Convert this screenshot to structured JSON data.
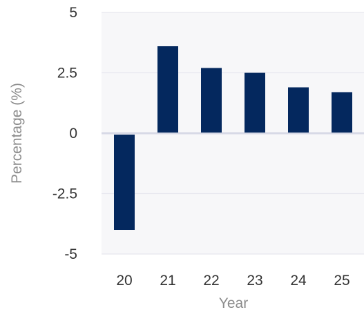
{
  "chart_data": {
    "type": "bar",
    "categories": [
      "20",
      "21",
      "22",
      "23",
      "24",
      "25"
    ],
    "values": [
      -4.0,
      3.6,
      2.7,
      2.5,
      1.9,
      1.7
    ],
    "xlabel": "Year",
    "ylabel": "Percentage (%)",
    "ylim": [
      -5,
      5
    ],
    "yticks": [
      5,
      2.5,
      0,
      -2.5,
      -5
    ],
    "ytick_labels": [
      "5",
      "2.5",
      "0",
      "-2.5",
      "-5"
    ],
    "grid": true,
    "colors": {
      "bar": "#04285e",
      "plot_background": "#f7f7f9",
      "gridline": "#e6e6ee",
      "zero_line": "#d7d9e6"
    }
  }
}
